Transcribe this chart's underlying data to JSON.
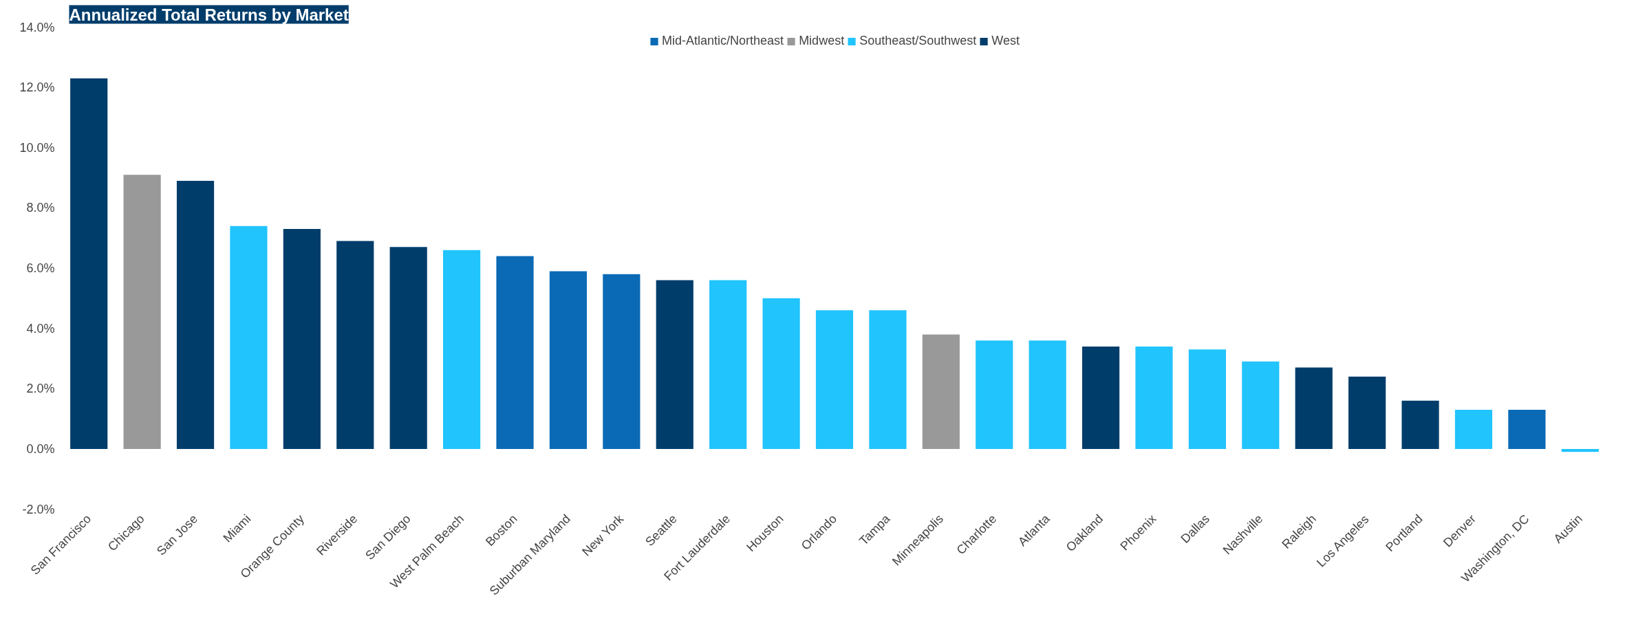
{
  "chart_data": {
    "type": "bar",
    "title": "Annualized Total Returns by Market",
    "categories": [
      "San Francisco",
      "Chicago",
      "San Jose",
      "Miami",
      "Orange County",
      "Riverside",
      "San Diego",
      "West Palm Beach",
      "Boston",
      "Suburban Maryland",
      "New York",
      "Seattle",
      "Fort Lauderdale",
      "Houston",
      "Orlando",
      "Tampa",
      "Minneapolis",
      "Charlotte",
      "Atlanta",
      "Oakland",
      "Phoenix",
      "Dallas",
      "Nashville",
      "Raleigh",
      "Los Angeles",
      "Portland",
      "Denver",
      "Washington, DC",
      "Austin"
    ],
    "series": [
      {
        "name": "Mid-Atlantic/Northeast",
        "color": "#0a6ab5",
        "values": [
          null,
          null,
          null,
          null,
          null,
          null,
          null,
          null,
          6.4,
          5.9,
          5.8,
          null,
          null,
          null,
          null,
          null,
          null,
          null,
          null,
          null,
          null,
          null,
          null,
          null,
          null,
          null,
          null,
          1.3,
          null
        ]
      },
      {
        "name": "Midwest",
        "color": "#999999",
        "values": [
          null,
          9.1,
          null,
          null,
          null,
          null,
          null,
          null,
          null,
          null,
          null,
          null,
          null,
          null,
          null,
          null,
          3.8,
          null,
          null,
          null,
          null,
          null,
          null,
          null,
          null,
          null,
          null,
          null,
          null
        ]
      },
      {
        "name": "Southeast/Southwest",
        "color": "#21c4fd",
        "values": [
          null,
          null,
          null,
          7.4,
          null,
          null,
          null,
          6.6,
          null,
          null,
          null,
          null,
          5.6,
          5.0,
          4.6,
          4.6,
          null,
          3.6,
          3.6,
          null,
          3.4,
          3.3,
          2.9,
          null,
          null,
          null,
          1.3,
          null,
          -0.1
        ]
      },
      {
        "name": "West",
        "color": "#003d6b",
        "values": [
          12.3,
          null,
          8.9,
          null,
          7.3,
          6.9,
          6.7,
          null,
          null,
          null,
          null,
          5.6,
          null,
          null,
          null,
          null,
          null,
          null,
          null,
          3.4,
          null,
          null,
          null,
          2.7,
          2.4,
          1.6,
          null,
          null,
          null
        ]
      }
    ],
    "ylim": [
      -2,
      14
    ],
    "yticks": [
      {
        "value": -2,
        "label": "-2.0%"
      },
      {
        "value": 0,
        "label": "0.0%"
      },
      {
        "value": 2,
        "label": "2.0%"
      },
      {
        "value": 4,
        "label": "4.0%"
      },
      {
        "value": 6,
        "label": "6.0%"
      },
      {
        "value": 8,
        "label": "8.0%"
      },
      {
        "value": 10,
        "label": "10.0%"
      },
      {
        "value": 12,
        "label": "12.0%"
      },
      {
        "value": 14,
        "label": "14.0%"
      }
    ],
    "legend": "top"
  }
}
